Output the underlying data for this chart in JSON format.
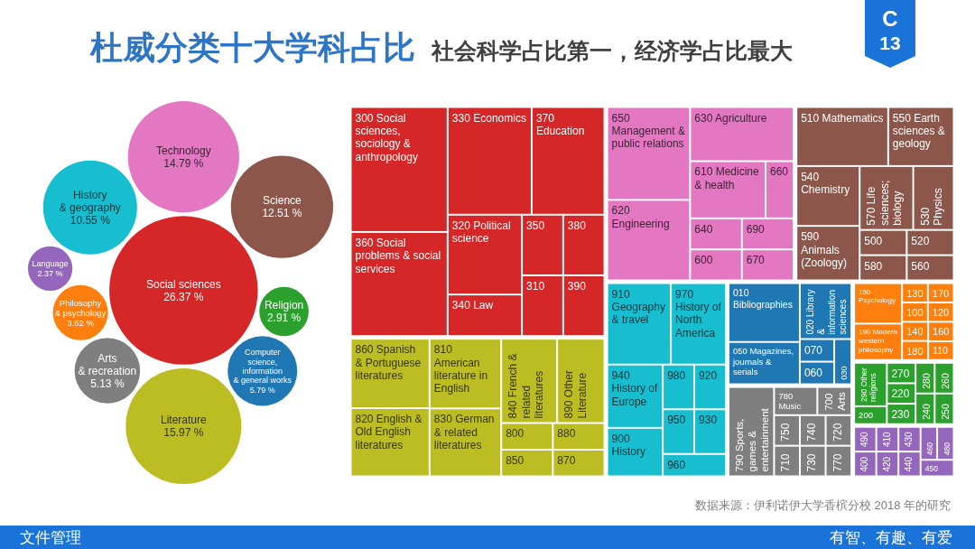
{
  "chart_data": [
    {
      "type": "other",
      "title": "杜威分类十大学科占比",
      "subtitle": "社会科学占比第一，经济学占比最大",
      "categories": [
        "Social sciences",
        "Literature",
        "Technology",
        "Science",
        "History\n& geography",
        "Computer\nscience,\ninformation\n& general works",
        "Arts\n& recreation",
        "Philosophy\n& psychology",
        "Religion",
        "Language"
      ],
      "values": [
        26.37,
        15.97,
        14.79,
        12.51,
        10.55,
        5.79,
        5.13,
        3.62,
        2.91,
        2.37
      ],
      "value_labels": [
        "26.37 %",
        "15.97 %",
        "14.79 %",
        "12.51 %",
        "10.55 %",
        "5.79 %",
        "5.13 %",
        "3.62 %",
        "2.91 %",
        "2.37 %"
      ],
      "colors": [
        "#d62728",
        "#bcbd22",
        "#e377c2",
        "#8c564b",
        "#17becf",
        "#1f77b4",
        "#7f7f7f",
        "#ff7f0e",
        "#2ca02c",
        "#9467bd"
      ],
      "annotations": [
        "C",
        "13",
        "数据来源：伊利诺伊大学香槟分校 2018 年的研究",
        "文件管理",
        "有智、有趣、有爱"
      ]
    },
    {
      "type": "other",
      "categories": [
        "330 Economics",
        "370 Education",
        "360 Social problems & social services",
        "300 Social sciences, sociology & anthropology",
        "350",
        "380",
        "320 Political science",
        "340 Law",
        "310",
        "390",
        "890 Other Literature",
        "820 English & Old English literatures",
        "830 German & related literatures",
        "810 American literature in English",
        "860 Spanish & Portuguese literatures",
        "800",
        "850",
        "840 French & related literatures",
        "880",
        "870",
        "630 Agriculture",
        "620 Engineering",
        "610 Medicine & health",
        "660",
        "640",
        "600",
        "650 Management & public relations",
        "690",
        "670",
        "510 Mathematics",
        "550 Earth sciences & geology",
        "530 Physics",
        "570 Life sciences; biology",
        "540 Chemistry",
        "500",
        "580",
        "590 Animals (Zoology)",
        "520",
        "560",
        "940 History of Europe",
        "910 Geography & travel",
        "970 History of North America",
        "900 History",
        "980",
        "920",
        "950",
        "930",
        "960",
        "010 Bibliographies",
        "020 Library & information sciences",
        "070",
        "050 Magazines, journals & serials",
        "060",
        "030",
        "790 Sports, games & entertainment",
        "700 Arts",
        "750",
        "710",
        "740",
        "780 Music",
        "720",
        "730",
        "770",
        "190 Modern western philosophy",
        "130",
        "170",
        "100",
        "120",
        "140",
        "150 Psychology",
        "180",
        "110",
        "160",
        "290 Other religions",
        "200",
        "270",
        "220",
        "230",
        "280",
        "260",
        "240",
        "250",
        "490",
        "400",
        "410",
        "420",
        "430",
        "440",
        "460",
        "480",
        "450"
      ],
      "colors": [
        "#d62728",
        "#d62728",
        "#d62728",
        "#d62728",
        "#d62728",
        "#d62728",
        "#d62728",
        "#d62728",
        "#d62728",
        "#d62728",
        "#bcbd22",
        "#bcbd22",
        "#bcbd22",
        "#bcbd22",
        "#bcbd22",
        "#bcbd22",
        "#bcbd22",
        "#bcbd22",
        "#bcbd22",
        "#bcbd22",
        "#e377c2",
        "#e377c2",
        "#e377c2",
        "#e377c2",
        "#e377c2",
        "#e377c2",
        "#e377c2",
        "#e377c2",
        "#e377c2",
        "#8c564b",
        "#8c564b",
        "#8c564b",
        "#8c564b",
        "#8c564b",
        "#8c564b",
        "#8c564b",
        "#8c564b",
        "#8c564b",
        "#8c564b",
        "#17becf",
        "#17becf",
        "#17becf",
        "#17becf",
        "#17becf",
        "#17becf",
        "#17becf",
        "#17becf",
        "#17becf",
        "#1f77b4",
        "#1f77b4",
        "#1f77b4",
        "#1f77b4",
        "#1f77b4",
        "#1f77b4",
        "#7f7f7f",
        "#7f7f7f",
        "#7f7f7f",
        "#7f7f7f",
        "#7f7f7f",
        "#7f7f7f",
        "#7f7f7f",
        "#7f7f7f",
        "#7f7f7f",
        "#ff7f0e",
        "#ff7f0e",
        "#ff7f0e",
        "#ff7f0e",
        "#ff7f0e",
        "#ff7f0e",
        "#ff7f0e",
        "#ff7f0e",
        "#ff7f0e",
        "#ff7f0e",
        "#2ca02c",
        "#2ca02c",
        "#2ca02c",
        "#2ca02c",
        "#2ca02c",
        "#2ca02c",
        "#2ca02c",
        "#2ca02c",
        "#2ca02c",
        "#9467bd",
        "#9467bd",
        "#9467bd",
        "#9467bd",
        "#9467bd",
        "#9467bd",
        "#9467bd",
        "#9467bd",
        "#9467bd"
      ]
    }
  ]
}
